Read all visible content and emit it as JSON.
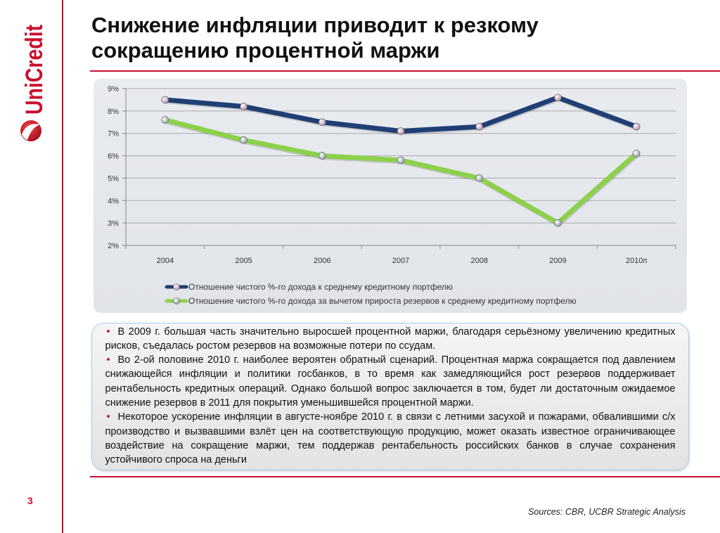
{
  "logo": {
    "text": "UniCredit",
    "color": "#c8102e",
    "icon": "unicredit-emblem-icon"
  },
  "page_number": "3",
  "title": {
    "lines": [
      "Снижение инфляции приводит к резкому",
      "сокращению процентной маржи"
    ]
  },
  "colors": {
    "accent": "#c8102e",
    "panel": "#e4e7ec",
    "box_border": "#a9cdea"
  },
  "chart_data": {
    "type": "line",
    "categories": [
      "2004",
      "2005",
      "2006",
      "2007",
      "2008",
      "2009",
      "2010п"
    ],
    "series": [
      {
        "name": "Отношение чистого %-го дохода к среднему кредитному портфелю",
        "values": [
          8.5,
          8.2,
          7.5,
          7.1,
          7.3,
          8.6,
          7.3
        ],
        "color": "#1f3f74",
        "marker_color": "#b48aa8"
      },
      {
        "name": "Отношение чистого %-го дохода за вычетом прироста резервов к среднему кредитному портфелю",
        "values": [
          7.6,
          6.7,
          6.0,
          5.8,
          5.0,
          3.0,
          6.1
        ],
        "color": "#8dd04c",
        "marker_color": "#8c9aa6"
      }
    ],
    "ylim": [
      2,
      9
    ],
    "yticks": [
      2,
      3,
      4,
      5,
      6,
      7,
      8,
      9
    ],
    "ytick_labels": [
      "2%",
      "3%",
      "4%",
      "5%",
      "6%",
      "7%",
      "8%",
      "9%"
    ],
    "grid": true,
    "legend": "bottom"
  },
  "bullet_symbol": "•",
  "bullets": [
    "В 2009 г. большая часть значительно выросшей процентной маржи, благодаря серьёзному увеличению кредитных рисков, съедалась ростом резервов на возможные потери по ссудам.",
    "Во 2-ой половине 2010 г. наиболее вероятен обратный сценарий. Процентная маржа сокращается под давлением снижающейся инфляции и политики госбанков, в то время как замедляющийся рост резервов поддерживает рентабельность кредитных операций. Однако большой вопрос заключается в том, будет ли достаточным ожидаемое снижение резервов в 2011 для покрытия уменьшившейся процентной маржи.",
    "Некоторое ускорение инфляции в августе-ноябре 2010 г. в связи с летними засухой и пожарами, обвалившими с/х производство и вызвавшими взлёт цен на соответствующую продукцию, может оказать известное ограничивающее воздействие на сокращение маржи, тем поддержав рентабельность российских банков в случае сохранения устойчивого спроса на деньги"
  ],
  "sources": "Sources: CBR, UCBR Strategic Analysis"
}
